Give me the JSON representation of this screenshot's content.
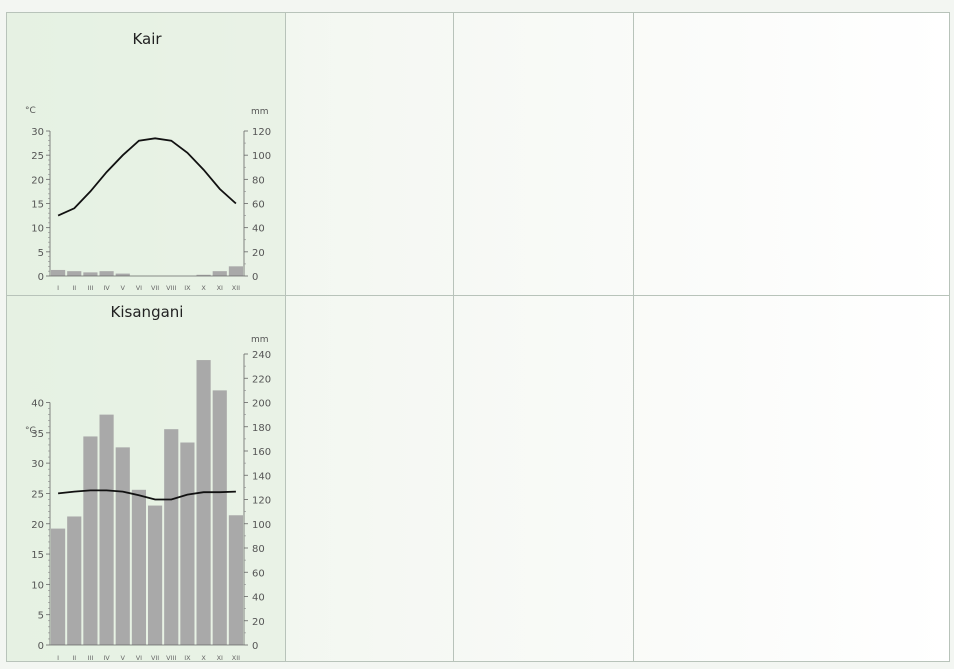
{
  "chart_data": [
    {
      "type": "bar",
      "title": "Kair",
      "categories": [
        "I",
        "II",
        "III",
        "IV",
        "V",
        "VI",
        "VII",
        "VIII",
        "IX",
        "X",
        "XI",
        "XII"
      ],
      "temp_unit": "°C",
      "precip_unit": "mm",
      "temp_ticks": [
        "0",
        "5",
        "10",
        "15",
        "20",
        "25",
        "30"
      ],
      "precip_ticks": [
        "0",
        "20",
        "40",
        "60",
        "80",
        "100",
        "120"
      ],
      "temperature_ylim": [
        0,
        30
      ],
      "precipitation_ylim": [
        0,
        120
      ],
      "series": [
        {
          "values": [
            5,
            4,
            3,
            4,
            2,
            0,
            0,
            0,
            0,
            1,
            4,
            8
          ],
          "axis": "right",
          "type": "bar",
          "color": "#a9a9a9"
        },
        {
          "values": [
            12.5,
            14,
            17.5,
            21.5,
            25,
            28,
            28.5,
            28,
            25.5,
            22,
            18,
            15
          ],
          "axis": "left",
          "type": "line",
          "color": "#111111"
        }
      ]
    },
    {
      "type": "bar",
      "title": "Kisangani",
      "categories": [
        "I",
        "II",
        "III",
        "IV",
        "V",
        "VI",
        "VII",
        "VIII",
        "IX",
        "X",
        "XI",
        "XII"
      ],
      "temp_unit": "°C",
      "precip_unit": "mm",
      "temp_ticks": [
        "0",
        "5",
        "10",
        "15",
        "20",
        "25",
        "30",
        "35",
        "40"
      ],
      "precip_ticks": [
        "0",
        "20",
        "40",
        "60",
        "80",
        "100",
        "120",
        "140",
        "160",
        "180",
        "200",
        "220",
        "240"
      ],
      "temperature_ylim": [
        0,
        48
      ],
      "precipitation_ylim": [
        0,
        240
      ],
      "series": [
        {
          "values": [
            96,
            106,
            172,
            190,
            163,
            128,
            115,
            178,
            167,
            235,
            210,
            107
          ],
          "axis": "right",
          "type": "bar",
          "color": "#a9a9a9"
        },
        {
          "values": [
            25,
            25.3,
            25.5,
            25.5,
            25.3,
            24.7,
            24,
            24,
            24.8,
            25.2,
            25.2,
            25.3
          ],
          "axis": "left",
          "type": "line",
          "color": "#111111"
        }
      ]
    }
  ]
}
